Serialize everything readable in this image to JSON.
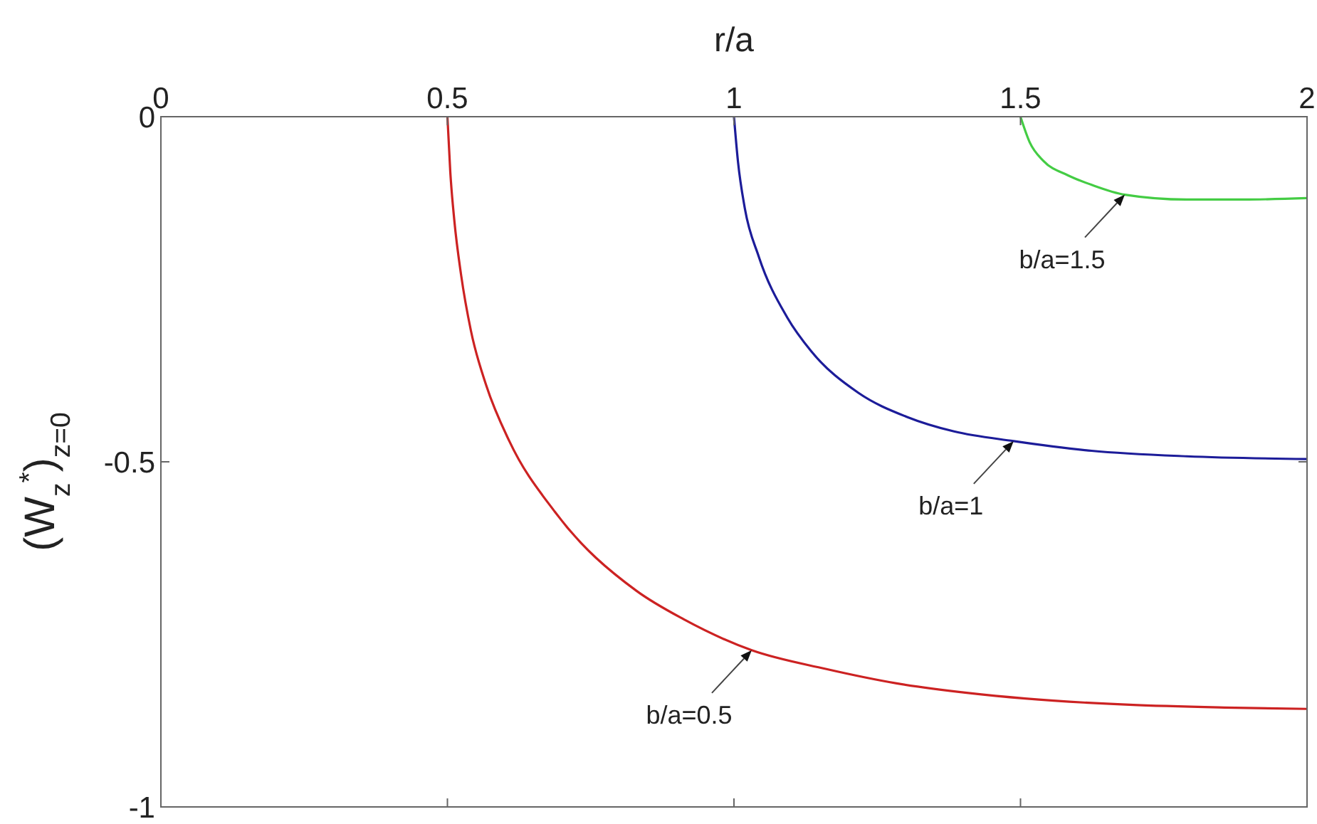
{
  "chart_data": {
    "type": "line",
    "xlabel": "r/a",
    "ylabel": "(W$_{z}$$^{*}$)$_{z=0}$",
    "xlim": [
      0,
      2
    ],
    "xticks": [
      0,
      0.5,
      1,
      1.5,
      2
    ],
    "ylim": [
      -1,
      0
    ],
    "yticks": [
      -1,
      -0.5,
      0
    ],
    "series": [
      {
        "color": "#cc2222",
        "x": [
          0.5,
          0.505,
          0.512,
          0.524,
          0.541,
          0.568,
          0.608,
          0.688,
          0.83,
          0.912,
          1.031,
          1.16,
          1.284,
          1.409,
          1.508,
          1.69,
          1.856,
          2.0
        ],
        "values": [
          0,
          -0.08,
          -0.15,
          -0.23,
          -0.31,
          -0.39,
          -0.47,
          -0.573,
          -0.687,
          -0.728,
          -0.773,
          -0.8,
          -0.821,
          -0.835,
          -0.843,
          -0.852,
          -0.856,
          -0.858
        ]
      },
      {
        "color": "#1c1c99",
        "x": [
          1.0,
          1.007,
          1.019,
          1.043,
          1.093,
          1.135,
          1.217,
          1.302,
          1.384,
          1.488,
          1.624,
          1.79,
          2.0
        ],
        "values": [
          0,
          -0.065,
          -0.133,
          -0.202,
          -0.291,
          -0.34,
          -0.4,
          -0.435,
          -0.456,
          -0.47,
          -0.484,
          -0.492,
          -0.496
        ]
      },
      {
        "color": "#44cc44",
        "x": [
          1.5,
          1.516,
          1.54,
          1.583,
          1.625,
          1.682,
          1.789,
          1.888,
          2.0
        ],
        "values": [
          0,
          -0.037,
          -0.064,
          -0.085,
          -0.099,
          -0.113,
          -0.12,
          -0.12,
          -0.118
        ]
      }
    ],
    "annotations": [
      {
        "text": "b/a=0.5",
        "x": 1.031,
        "y": -0.773
      },
      {
        "text": "b/a=1",
        "x": 1.488,
        "y": -0.47
      },
      {
        "text": "b/a=1.5",
        "x": 1.682,
        "y": -0.113
      }
    ]
  }
}
